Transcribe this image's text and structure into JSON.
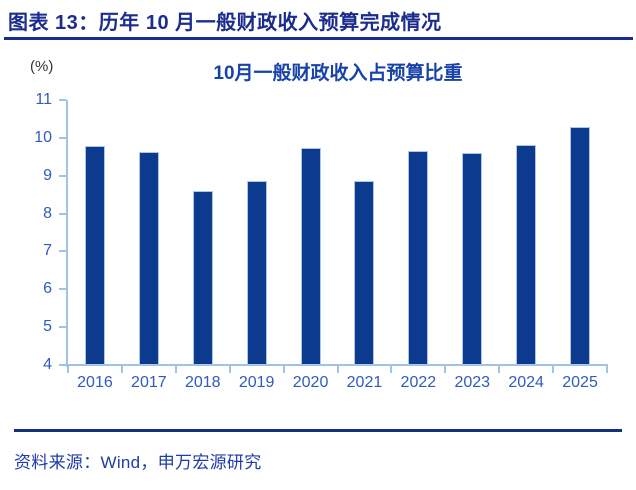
{
  "page": {
    "header": {
      "title": "图表 13：历年 10 月一般财政收入预算完成情况"
    },
    "footer": {
      "source": "资料来源：Wind，申万宏源研究"
    }
  },
  "chart_data": {
    "type": "bar",
    "title": "10月一般财政收入占预算比重",
    "unit_label": "(%)",
    "categories": [
      "2016",
      "2017",
      "2018",
      "2019",
      "2020",
      "2021",
      "2022",
      "2023",
      "2024",
      "2025"
    ],
    "values": [
      9.78,
      9.63,
      8.6,
      8.87,
      9.74,
      8.86,
      9.66,
      9.6,
      9.81,
      10.29
    ],
    "xlabel": "",
    "ylabel": "(%)",
    "ylim": [
      4,
      11
    ],
    "ytick_step": 1,
    "yticks": [
      4,
      5,
      6,
      7,
      8,
      9,
      10,
      11
    ],
    "grid": false,
    "legend": "none"
  },
  "colors": {
    "background": "#FFFFFF",
    "header_text": "#1B2C8F",
    "header_rule": "#1B2C8F",
    "chart_title": "#1743A8",
    "unit_label": "#333333",
    "axis_line": "#9DC3E6",
    "axis_label": "#2E5BC0",
    "bar_fill": "#0C3A8E",
    "bar_edge": "#AEC6E8",
    "footer_rule": "#14317E",
    "footer_text": "#1E3BA8"
  }
}
